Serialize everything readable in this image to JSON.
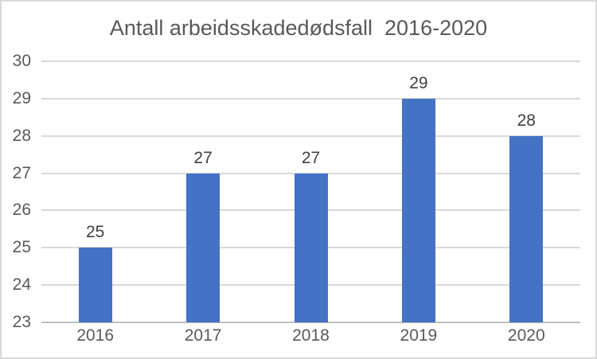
{
  "chart_data": {
    "type": "bar",
    "title": "Antall arbeidsskadedødsfall  2016-2020",
    "categories": [
      "2016",
      "2017",
      "2018",
      "2019",
      "2020"
    ],
    "values": [
      25,
      27,
      27,
      29,
      28
    ],
    "data_labels": [
      "25",
      "27",
      "27",
      "29",
      "28"
    ],
    "xlabel": "",
    "ylabel": "",
    "ylim": [
      23,
      30
    ],
    "ytick_step": 1,
    "ytick_labels": [
      "23",
      "24",
      "25",
      "26",
      "27",
      "28",
      "29",
      "30"
    ],
    "grid": true,
    "legend": "none",
    "colors": {
      "bar": "#4472C4",
      "gridline": "#D9D9D9",
      "axis_line": "#BFBFBF",
      "tick_text": "#595959",
      "title_text": "#595959",
      "data_label_text": "#404040",
      "frame_border": "#D9D9D9",
      "background": "#FFFFFF"
    }
  }
}
